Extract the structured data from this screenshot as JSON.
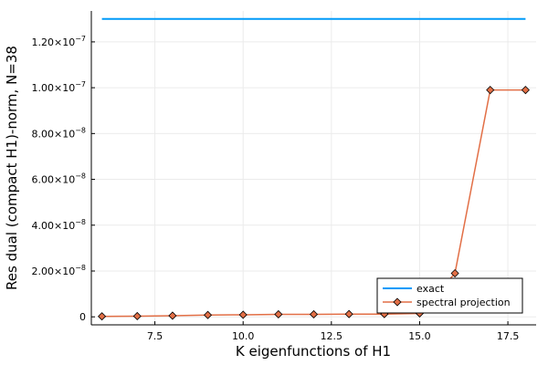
{
  "chart_data": {
    "type": "line",
    "xlabel": "K eigenfunctions of H1",
    "ylabel": "Res dual (compact H1)-norm, N=38",
    "xlim": [
      5.7,
      18.3
    ],
    "ylim": [
      -3.5e-09,
      1.335e-07
    ],
    "x_ticks": [
      7.5,
      10.0,
      12.5,
      15.0,
      17.5
    ],
    "x_tick_labels": [
      "7.5",
      "10.0",
      "12.5",
      "15.0",
      "17.5"
    ],
    "y_ticks": [
      0,
      2e-08,
      4e-08,
      6e-08,
      8e-08,
      1e-07,
      1.2e-07
    ],
    "y_tick_labels": [
      {
        "mantissa": "0",
        "exp": ""
      },
      {
        "mantissa": "2.00×10",
        "exp": "−8"
      },
      {
        "mantissa": "4.00×10",
        "exp": "−8"
      },
      {
        "mantissa": "6.00×10",
        "exp": "−8"
      },
      {
        "mantissa": "8.00×10",
        "exp": "−8"
      },
      {
        "mantissa": "1.00×10",
        "exp": "−7"
      },
      {
        "mantissa": "1.20×10",
        "exp": "−7"
      }
    ],
    "grid": true,
    "legend_position": "bottom-right",
    "series": [
      {
        "name": "exact",
        "color": "#009af9",
        "marker": "none",
        "x": [
          6,
          18
        ],
        "y": [
          1.3e-07,
          1.3e-07
        ]
      },
      {
        "name": "spectral projection",
        "color": "#e26f46",
        "marker": "diamond",
        "x": [
          6,
          7,
          8,
          9,
          10,
          11,
          12,
          13,
          14,
          15,
          16,
          17,
          18
        ],
        "y": [
          2e-10,
          3e-10,
          5e-10,
          8e-10,
          9e-10,
          1.1e-09,
          1.1e-09,
          1.2e-09,
          1.2e-09,
          1.5e-09,
          1.9e-08,
          9.9e-08,
          9.9e-08
        ]
      }
    ]
  }
}
